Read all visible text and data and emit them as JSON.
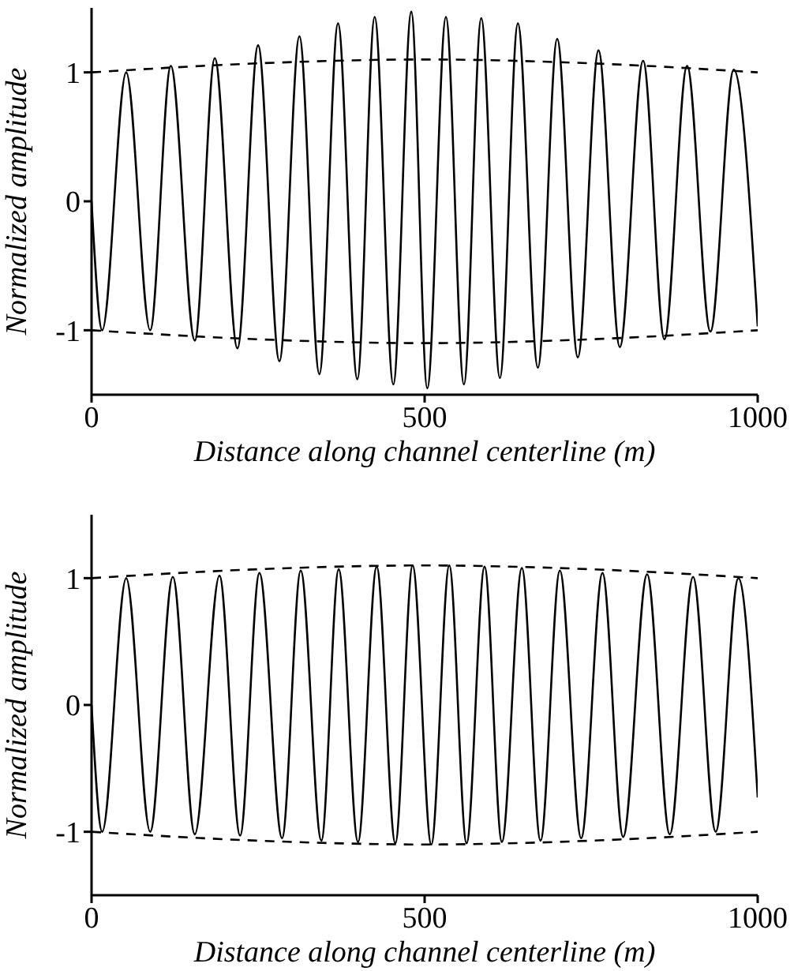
{
  "chart_data": [
    {
      "type": "line",
      "xlabel": "Distance along channel centerline (m)",
      "ylabel": "Normalized amplitude",
      "xlim": [
        0,
        1000
      ],
      "xticks": [
        0,
        500,
        1000
      ],
      "ylim": [
        -1.5,
        1.5
      ],
      "yticks": [
        -1,
        0,
        1
      ],
      "series": [
        {
          "color": "#000000",
          "line_style": "solid",
          "x": [
            0,
            16,
            52,
            88,
            119,
            155,
            185,
            219,
            250,
            282,
            312,
            342,
            370,
            399,
            425,
            453,
            480,
            504,
            532,
            559,
            585,
            613,
            640,
            670,
            699,
            730,
            761,
            793,
            828,
            860,
            894,
            929,
            964,
            1000
          ],
          "values": [
            0,
            -1,
            1,
            -1,
            1.05,
            -1.08,
            1.11,
            -1.14,
            1.21,
            -1.24,
            1.28,
            -1.34,
            1.38,
            -1.38,
            1.43,
            -1.42,
            1.47,
            -1.45,
            1.43,
            -1.42,
            1.42,
            -1.37,
            1.38,
            -1.29,
            1.26,
            -1.21,
            1.17,
            -1.13,
            1.09,
            -1.07,
            1.05,
            -1.01,
            1.02,
            -0.97
          ]
        },
        {
          "color": "#000000",
          "line_style": "dashed",
          "x": [
            0,
            250,
            500,
            750,
            1000
          ],
          "values": [
            1,
            1.07,
            1.1,
            1.07,
            1
          ]
        },
        {
          "color": "#000000",
          "line_style": "dashed",
          "x": [
            0,
            250,
            500,
            750,
            1000
          ],
          "values": [
            -1,
            -1.07,
            -1.1,
            -1.07,
            -1
          ]
        }
      ]
    },
    {
      "type": "line",
      "xlabel": "Distance along channel centerline (m)",
      "ylabel": "Normalized amplitude",
      "xlim": [
        0,
        1000
      ],
      "xticks": [
        0,
        500,
        1000
      ],
      "ylim": [
        -1.5,
        1.5
      ],
      "yticks": [
        -1,
        0,
        1
      ],
      "series": [
        {
          "color": "#000000",
          "line_style": "solid",
          "x": [
            0,
            16,
            52,
            88,
            122,
            155,
            192,
            223,
            252,
            286,
            314,
            345,
            371,
            400,
            428,
            456,
            482,
            510,
            537,
            563,
            590,
            616,
            646,
            674,
            703,
            735,
            767,
            798,
            834,
            868,
            903,
            937,
            971,
            1000
          ],
          "values": [
            0,
            -1,
            1,
            -1,
            1.01,
            -1.02,
            1.02,
            -1.03,
            1.04,
            -1.05,
            1.06,
            -1.07,
            1.07,
            -1.08,
            1.09,
            -1.09,
            1.1,
            -1.1,
            1.1,
            -1.09,
            1.09,
            -1.08,
            1.08,
            -1.07,
            1.06,
            -1.05,
            1.04,
            -1.04,
            1.03,
            -1.02,
            1.01,
            -1,
            1,
            -0.73
          ]
        },
        {
          "color": "#000000",
          "line_style": "dashed",
          "x": [
            0,
            250,
            500,
            750,
            1000
          ],
          "values": [
            1,
            1.07,
            1.1,
            1.07,
            1
          ]
        },
        {
          "color": "#000000",
          "line_style": "dashed",
          "x": [
            0,
            250,
            500,
            750,
            1000
          ],
          "values": [
            -1,
            -1.07,
            -1.1,
            -1.07,
            -1
          ]
        }
      ]
    }
  ]
}
